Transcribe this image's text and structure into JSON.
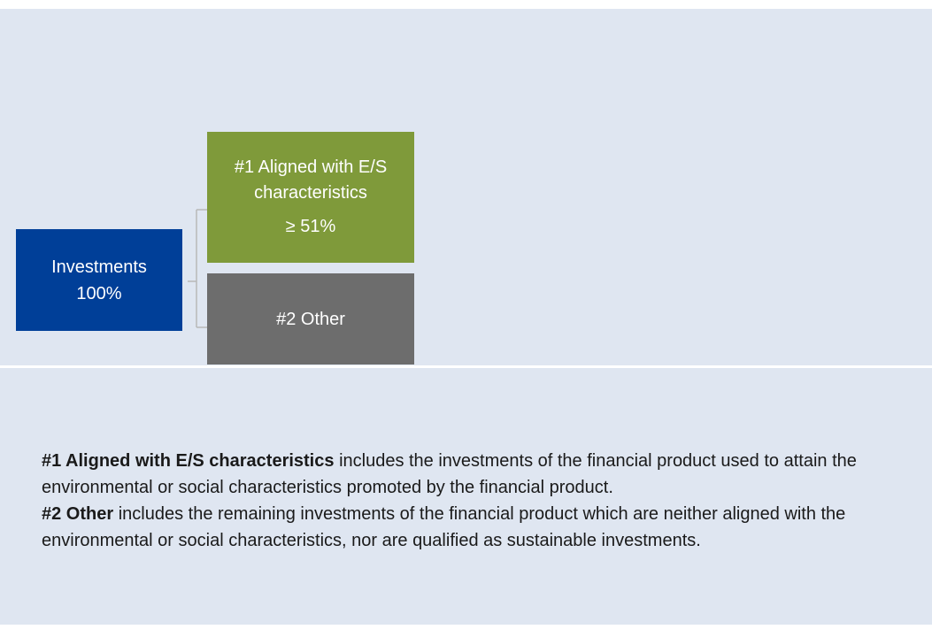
{
  "diagram": {
    "root": {
      "label": "Investments",
      "share": "100%"
    },
    "branches": [
      {
        "label": "#1 Aligned with E/S characteristics",
        "share": "≥ 51%"
      },
      {
        "label": "#2 Other"
      }
    ]
  },
  "notes": [
    {
      "term": "#1 Aligned with E/S characteristics",
      "text": "includes the investments of the financial product used to attain the environmental or social characteristics promoted by the financial product."
    },
    {
      "term": "#2 Other",
      "text": "includes the remaining investments of the financial product which are neither aligned with the environmental or social characteristics, nor are qualified as sustainable investments."
    }
  ]
}
